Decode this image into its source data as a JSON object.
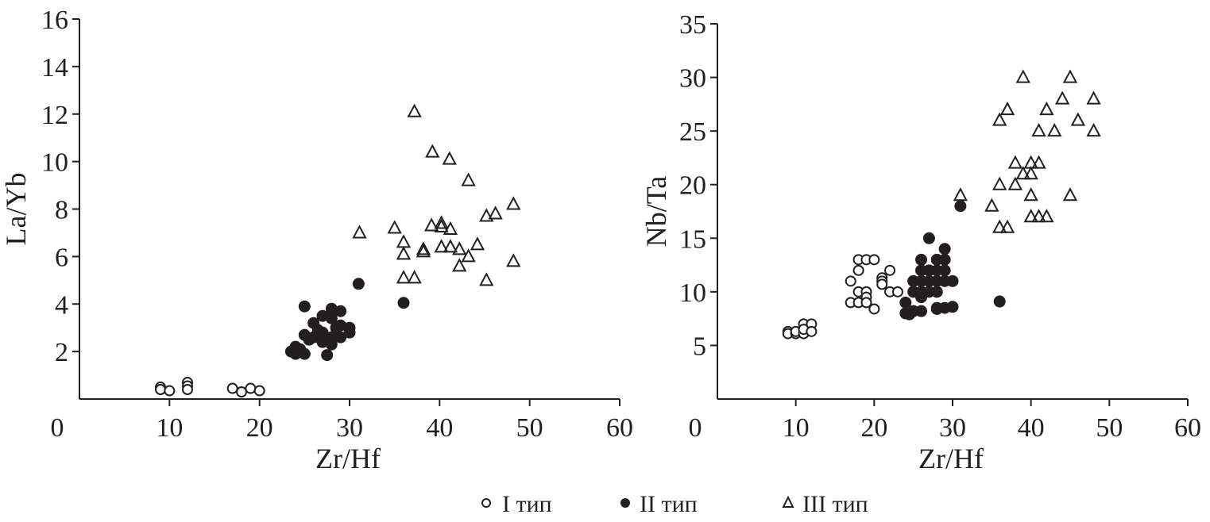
{
  "legend": [
    {
      "label": "I тип",
      "marker": "open-circle"
    },
    {
      "label": "II тип",
      "marker": "filled-circle"
    },
    {
      "label": "III тип",
      "marker": "open-triangle"
    }
  ],
  "colors": {
    "ink": "#231f20",
    "background": "#ffffff"
  },
  "chart_data": [
    {
      "type": "scatter",
      "xlabel": "Zr/Hf",
      "ylabel": "La/Yb",
      "xlim": [
        0,
        60
      ],
      "ylim": [
        0,
        16
      ],
      "xticks": [
        0,
        10,
        20,
        30,
        40,
        50,
        60
      ],
      "yticks": [
        2,
        4,
        6,
        8,
        10,
        12,
        14,
        16
      ],
      "grid": false,
      "series": [
        {
          "name": "I тип",
          "points": [
            [
              9,
              0.5
            ],
            [
              9,
              0.4
            ],
            [
              10,
              0.35
            ],
            [
              12,
              0.7
            ],
            [
              12,
              0.55
            ],
            [
              12,
              0.4
            ],
            [
              17,
              0.45
            ],
            [
              18,
              0.3
            ],
            [
              19,
              0.45
            ],
            [
              20,
              0.35
            ]
          ]
        },
        {
          "name": "II тип",
          "points": [
            [
              23.5,
              2.0
            ],
            [
              24,
              2.2
            ],
            [
              24,
              1.9
            ],
            [
              24.5,
              2.1
            ],
            [
              25,
              3.9
            ],
            [
              25,
              2.7
            ],
            [
              25,
              1.9
            ],
            [
              25.5,
              2.5
            ],
            [
              26,
              3.2
            ],
            [
              26,
              2.6
            ],
            [
              26.5,
              2.9
            ],
            [
              27,
              3.5
            ],
            [
              27,
              2.8
            ],
            [
              27,
              2.4
            ],
            [
              27.5,
              1.85
            ],
            [
              28,
              3.8
            ],
            [
              28,
              3.4
            ],
            [
              28,
              2.6
            ],
            [
              28,
              2.3
            ],
            [
              28.5,
              3.0
            ],
            [
              29,
              3.7
            ],
            [
              29,
              3.1
            ],
            [
              29,
              2.6
            ],
            [
              30,
              3.0
            ],
            [
              30,
              2.8
            ],
            [
              31,
              4.85
            ],
            [
              36,
              4.05
            ]
          ]
        },
        {
          "name": "III тип",
          "points": [
            [
              37.2,
              12.1
            ],
            [
              39.2,
              10.4
            ],
            [
              41.1,
              10.1
            ],
            [
              43.2,
              9.2
            ],
            [
              48.2,
              8.2
            ],
            [
              46.2,
              7.8
            ],
            [
              45.2,
              7.7
            ],
            [
              39.1,
              7.3
            ],
            [
              40.2,
              7.4
            ],
            [
              40.2,
              7.25
            ],
            [
              41.2,
              7.15
            ],
            [
              35,
              7.2
            ],
            [
              31.1,
              7.0
            ],
            [
              36,
              6.6
            ],
            [
              36,
              6.1
            ],
            [
              38.2,
              6.3
            ],
            [
              38.2,
              6.2
            ],
            [
              40.2,
              6.4
            ],
            [
              41.2,
              6.4
            ],
            [
              42.2,
              6.3
            ],
            [
              44.2,
              6.5
            ],
            [
              43.2,
              6.0
            ],
            [
              42.2,
              5.6
            ],
            [
              48.2,
              5.8
            ],
            [
              36,
              5.1
            ],
            [
              37.2,
              5.1
            ],
            [
              45.2,
              5.0
            ]
          ]
        }
      ]
    },
    {
      "type": "scatter",
      "xlabel": "Zr/Hf",
      "ylabel": "Nb/Ta",
      "xlim": [
        0,
        60
      ],
      "ylim": [
        0,
        35
      ],
      "xticks": [
        0,
        10,
        20,
        30,
        40,
        50,
        60
      ],
      "yticks": [
        5,
        10,
        15,
        20,
        25,
        30,
        35
      ],
      "grid": false,
      "series": [
        {
          "name": "I тип",
          "points": [
            [
              9,
              6.3
            ],
            [
              9,
              6.1
            ],
            [
              10,
              6.1
            ],
            [
              10,
              6.3
            ],
            [
              11,
              6.1
            ],
            [
              11,
              7
            ],
            [
              11,
              6.5
            ],
            [
              12,
              7
            ],
            [
              12,
              6.3
            ],
            [
              17,
              11
            ],
            [
              17,
              9
            ],
            [
              18,
              13
            ],
            [
              18,
              12
            ],
            [
              18,
              10
            ],
            [
              18,
              9
            ],
            [
              19,
              13
            ],
            [
              19,
              10
            ],
            [
              19,
              9.5
            ],
            [
              19,
              9
            ],
            [
              20,
              13
            ],
            [
              20,
              8.4
            ],
            [
              21,
              11.3
            ],
            [
              21,
              11
            ],
            [
              21,
              10.7
            ],
            [
              22,
              12
            ],
            [
              22,
              10
            ],
            [
              23,
              10
            ]
          ]
        },
        {
          "name": "II тип",
          "points": [
            [
              24,
              8
            ],
            [
              24,
              9
            ],
            [
              24.5,
              7.9
            ],
            [
              25,
              8.2
            ],
            [
              25,
              11
            ],
            [
              25,
              10
            ],
            [
              26,
              13
            ],
            [
              26,
              12
            ],
            [
              26,
              11
            ],
            [
              26,
              10
            ],
            [
              26,
              9.5
            ],
            [
              26,
              8.2
            ],
            [
              27,
              15
            ],
            [
              27,
              12
            ],
            [
              27,
              11
            ],
            [
              27,
              10
            ],
            [
              28,
              13
            ],
            [
              28,
              12
            ],
            [
              28,
              11
            ],
            [
              28,
              10
            ],
            [
              28,
              8.5
            ],
            [
              28,
              8.4
            ],
            [
              29,
              14
            ],
            [
              29,
              13
            ],
            [
              29,
              12
            ],
            [
              29,
              11
            ],
            [
              29,
              8.5
            ],
            [
              30,
              11
            ],
            [
              30,
              8.6
            ],
            [
              31,
              18
            ],
            [
              36,
              9.1
            ]
          ]
        },
        {
          "name": "III тип",
          "points": [
            [
              31,
              19
            ],
            [
              35,
              18
            ],
            [
              36,
              26
            ],
            [
              36,
              20
            ],
            [
              36,
              16
            ],
            [
              37,
              27
            ],
            [
              37,
              16
            ],
            [
              38,
              22
            ],
            [
              38,
              20
            ],
            [
              39,
              30
            ],
            [
              39,
              21
            ],
            [
              40,
              22
            ],
            [
              40,
              21
            ],
            [
              40,
              19
            ],
            [
              40,
              17
            ],
            [
              41,
              25
            ],
            [
              41,
              22
            ],
            [
              41,
              17
            ],
            [
              42,
              27
            ],
            [
              42,
              17
            ],
            [
              43,
              25
            ],
            [
              44,
              28
            ],
            [
              45,
              30
            ],
            [
              45,
              19
            ],
            [
              46,
              26
            ],
            [
              48,
              28
            ],
            [
              48,
              25
            ]
          ]
        }
      ]
    }
  ]
}
